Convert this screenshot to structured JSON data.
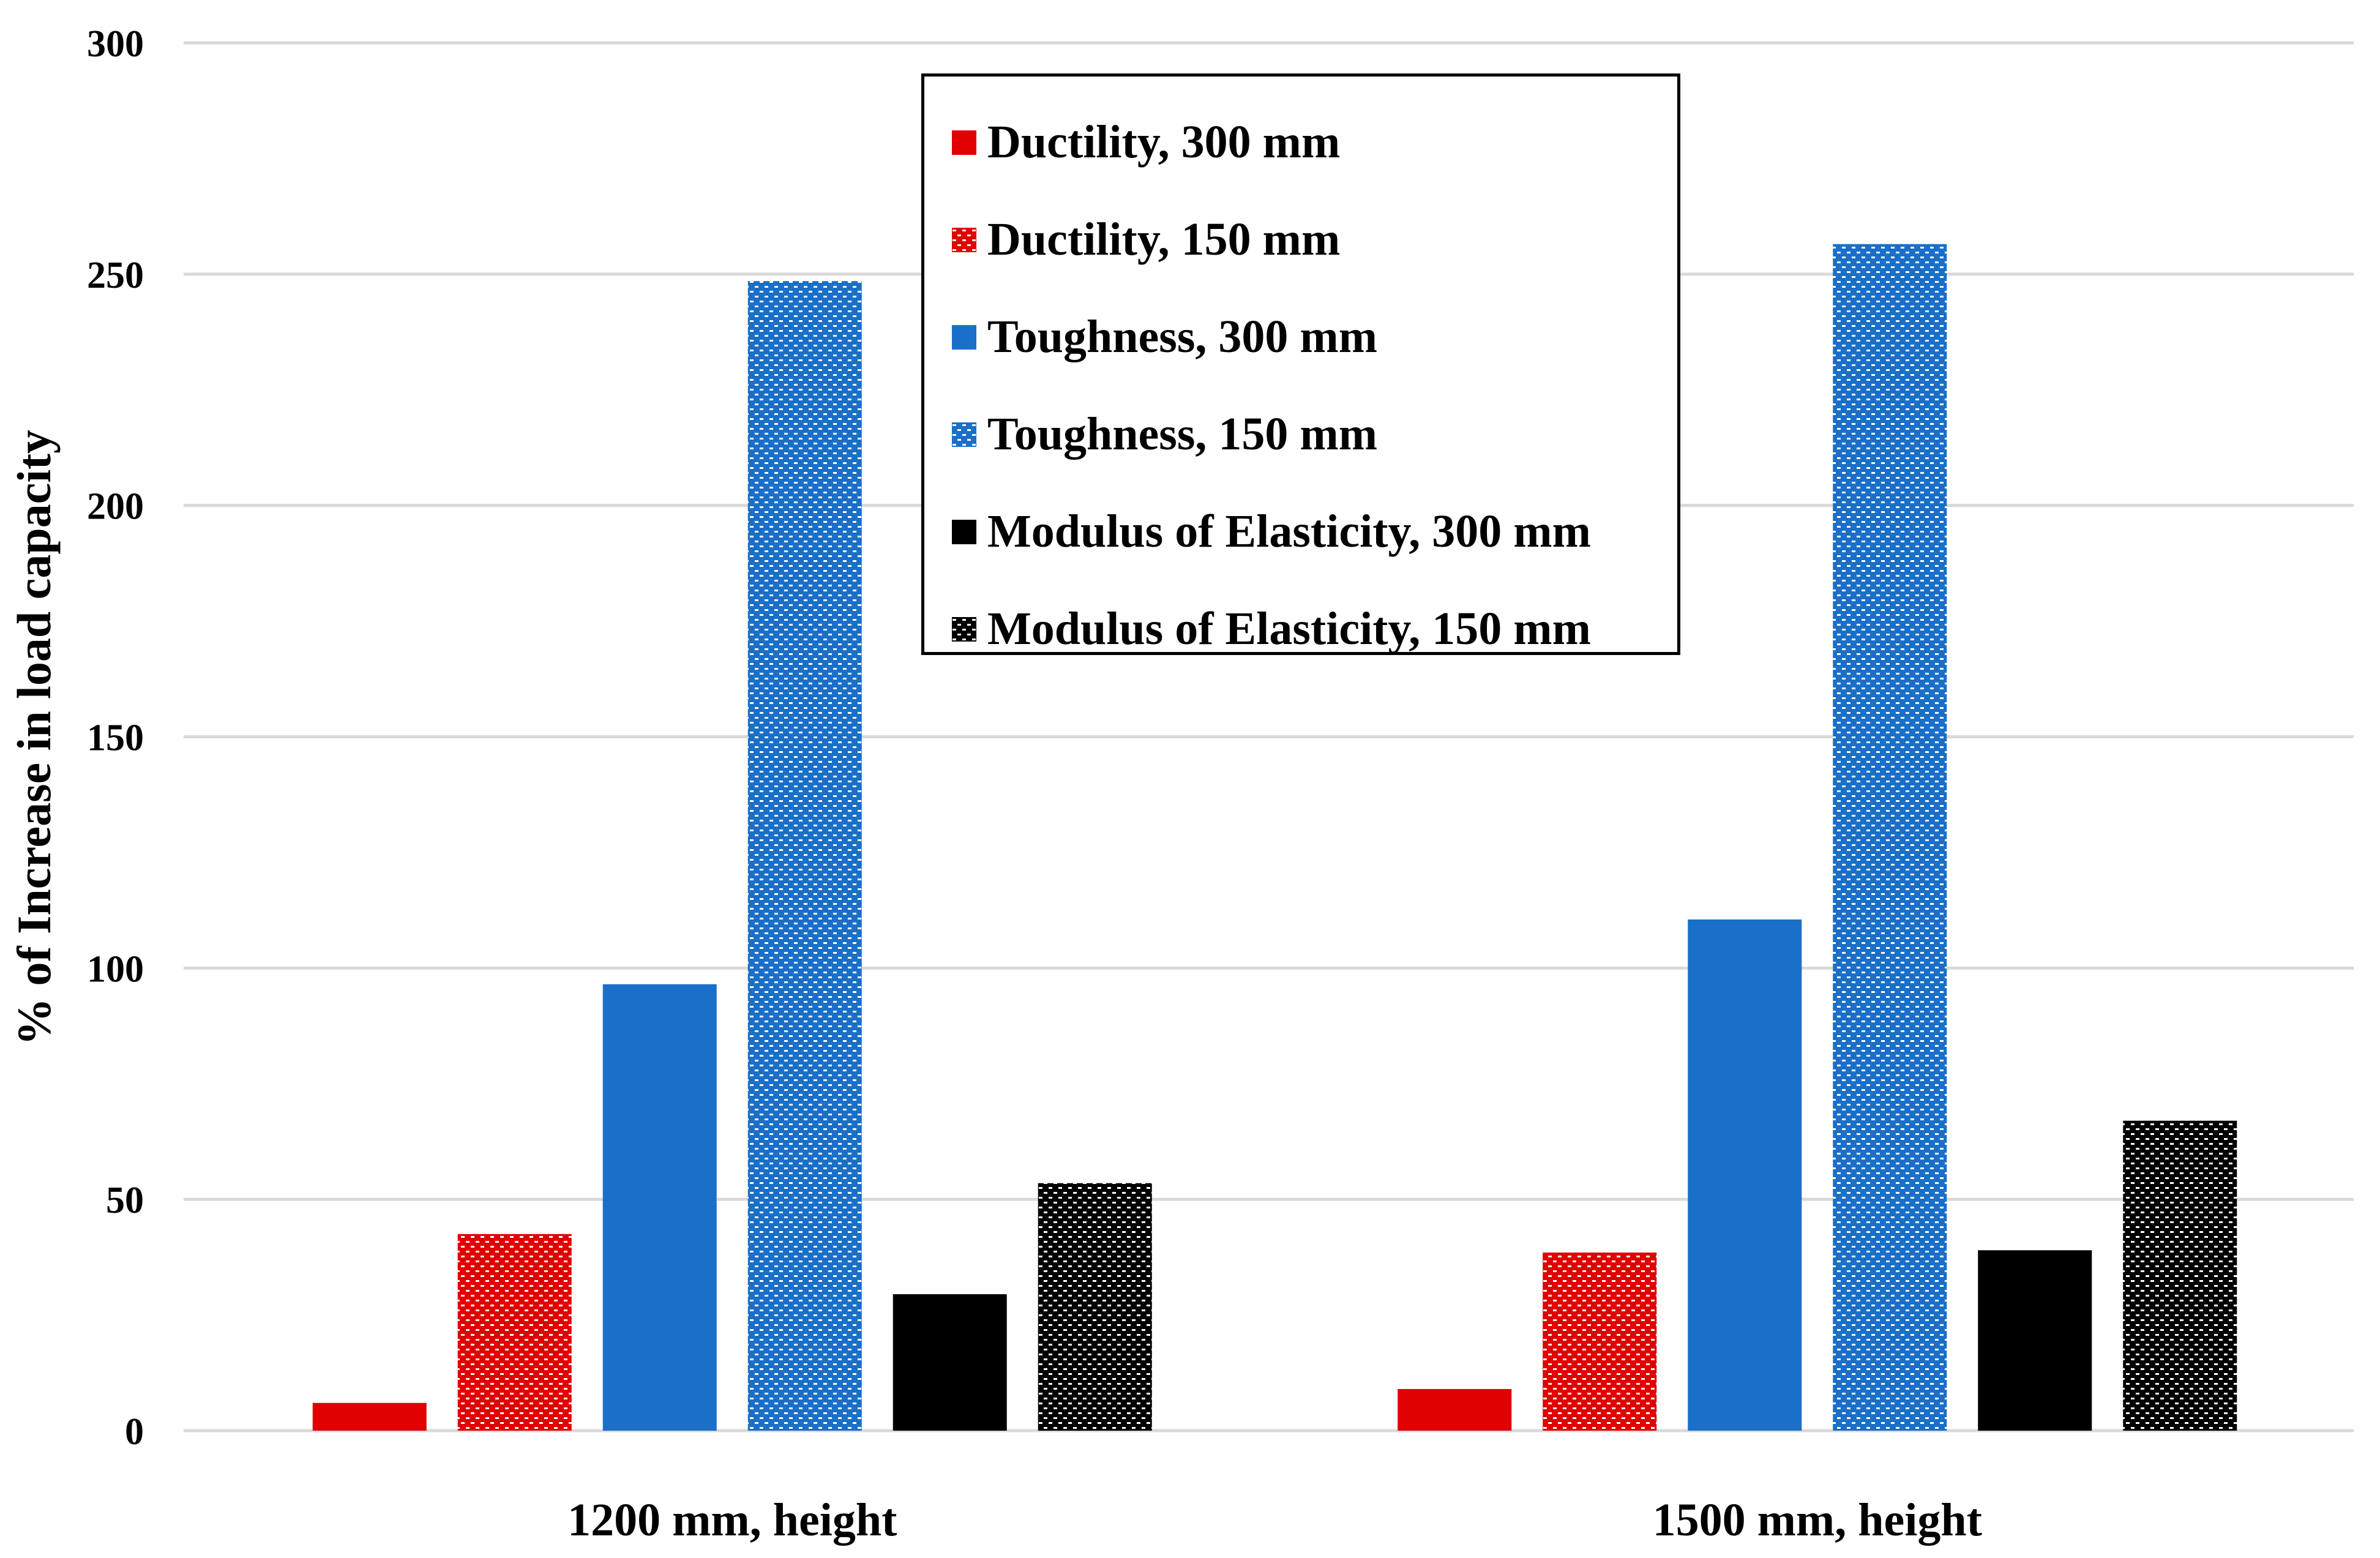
{
  "chart_data": {
    "type": "bar",
    "title": "",
    "xlabel": "",
    "ylabel": "% of Increase in load capacity",
    "ylim": [
      0,
      300
    ],
    "yticks": [
      "0",
      "50",
      "100",
      "150",
      "200",
      "250",
      "300"
    ],
    "grid": true,
    "legend_position": "top-center",
    "categories": [
      "1200 mm, height",
      "1500 mm, height"
    ],
    "series": [
      {
        "name": "Ductility, 300 mm",
        "values": [
          6,
          9
        ],
        "color": "#e00000",
        "pattern": "solid"
      },
      {
        "name": "Ductility, 150 mm",
        "values": [
          42.5,
          38.5
        ],
        "color": "#e00000",
        "pattern": "dotted"
      },
      {
        "name": "Toughness, 300 mm",
        "values": [
          96.5,
          110.5
        ],
        "color": "#1a6fc8",
        "pattern": "solid"
      },
      {
        "name": "Toughness, 150 mm",
        "values": [
          248.5,
          256.5
        ],
        "color": "#1a6fc8",
        "pattern": "dotted"
      },
      {
        "name": "Modulus of Elasticity, 300 mm",
        "values": [
          29.5,
          39
        ],
        "color": "#000000",
        "pattern": "solid"
      },
      {
        "name": "Modulus of Elasticity, 150 mm",
        "values": [
          53.5,
          67
        ],
        "color": "#000000",
        "pattern": "dotted"
      }
    ]
  }
}
